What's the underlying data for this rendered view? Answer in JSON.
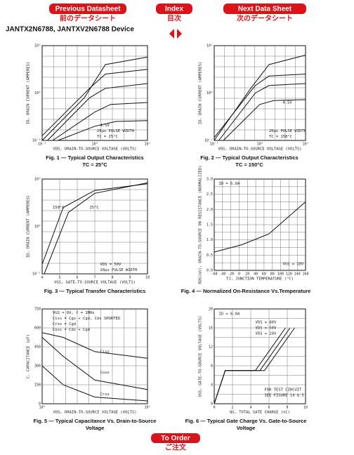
{
  "nav": {
    "previous": {
      "label": "Previous Datasheet",
      "sub": "前のデータシート"
    },
    "index": {
      "label": "Index",
      "sub": "目次"
    },
    "next": {
      "label": "Next Data Sheet",
      "sub": "次のデータシート"
    }
  },
  "title": "JANTX2N6788, JANTXV2N6788 Device",
  "figures": [
    {
      "caption": [
        "Fig. 1 — Typical Output Characteristics",
        "TC = 25°C"
      ],
      "y_label": "ID, DRAIN CURRENT (AMPERES)",
      "x_label": "VDS, DRAIN-TO-SOURCE VOLTAGE (VOLTS)",
      "yticks": [
        "10¹",
        "10⁰",
        "10⁻¹"
      ],
      "xticks": [
        "10⁻¹",
        "10⁰",
        "10¹"
      ],
      "notes": [
        "4.5V",
        "20µs PULSE WIDTH",
        "TC = 25°C"
      ]
    },
    {
      "caption": [
        "Fig. 2 — Typical Output Characteristics",
        "TC = 150°C"
      ],
      "y_label": "ID, DRAIN CURRENT (AMPERES)",
      "x_label": "VDS, DRAIN-TO-SOURCE VOLTAGE (VOLTS)",
      "yticks": [
        "10¹",
        "10⁰",
        "10⁻¹"
      ],
      "xticks": [
        "10⁻¹",
        "10⁰",
        "10¹"
      ],
      "notes": [
        "4.5V",
        "20µs PULSE WIDTH",
        "TC = 150°C"
      ]
    },
    {
      "caption": [
        "Fig. 3 — Typical Transfer Characteristics"
      ],
      "y_label": "ID, DRAIN CURRENT (AMPERES)",
      "x_label": "VGS, GATE-TO-SOURCE VOLTAGE (VOLTS)",
      "yticks": [
        "10¹",
        "10⁰",
        "10⁻¹"
      ],
      "xticks": [
        "4",
        "5",
        "6",
        "7",
        "8",
        "9",
        "10"
      ],
      "notes": [
        "150°C",
        "25°C",
        "VDS = 50V",
        "20µs PULSE WIDTH"
      ]
    },
    {
      "caption": [
        "Fig. 4 — Normalized On-Resistance Vs.Temperature"
      ],
      "y_label": "RDS(on), DRAIN-TO-SOURCE ON RESISTANCE (NORMALIZED)",
      "x_label": "TJ, JUNCTION TEMPERATURE (°C)",
      "yticks": [
        "3.0",
        "2.5",
        "2.0",
        "1.5",
        "1.0",
        "0.5",
        "0.0"
      ],
      "xticks": [
        "-60",
        "-40",
        "-20",
        "0",
        "20",
        "40",
        "60",
        "80",
        "100",
        "120",
        "140",
        "160"
      ],
      "notes": [
        "ID = 6.0A",
        "VGS = 10V"
      ]
    },
    {
      "caption": [
        "Fig. 5 — Typical Capacitance Vs. Drain-to-Source",
        "Voltage"
      ],
      "y_label": "C, CAPACITANCE (pF)",
      "x_label": "VDS, DRAIN-TO-SOURCE VOLTAGE (VOLTS)",
      "yticks": [
        "750",
        "600",
        "450",
        "300",
        "150",
        "0"
      ],
      "xticks": [
        "10⁰",
        "10¹"
      ],
      "notes": [
        "VGS = 0V, f = 1MHz",
        "Ciss = Cgs + Cgd, Cds SHORTED",
        "Crss = Cgd",
        "Coss = Cds + Cgd",
        "Ciss",
        "Coss",
        "Crss"
      ]
    },
    {
      "caption": [
        "Fig. 6 — Typical Gate Charge Vs. Gate-to-Source",
        "Voltage"
      ],
      "y_label": "VGS, GATE-TO-SOURCE VOLTAGE (VOLTS)",
      "x_label": "QG, TOTAL GATE CHARGE (nC)",
      "yticks": [
        "20",
        "16",
        "12",
        "8",
        "4",
        "0"
      ],
      "xticks": [
        "0",
        "2",
        "4",
        "6",
        "8",
        "10"
      ],
      "notes": [
        "ID = 6.0A",
        "VDS = 80V",
        "VDS = 50V",
        "VDS = 20V",
        "FOR TEST CIRCUIT",
        "SEE FIGURE 14 & 5"
      ]
    }
  ],
  "order": {
    "label": "To Order",
    "sub": "ご注文"
  }
}
